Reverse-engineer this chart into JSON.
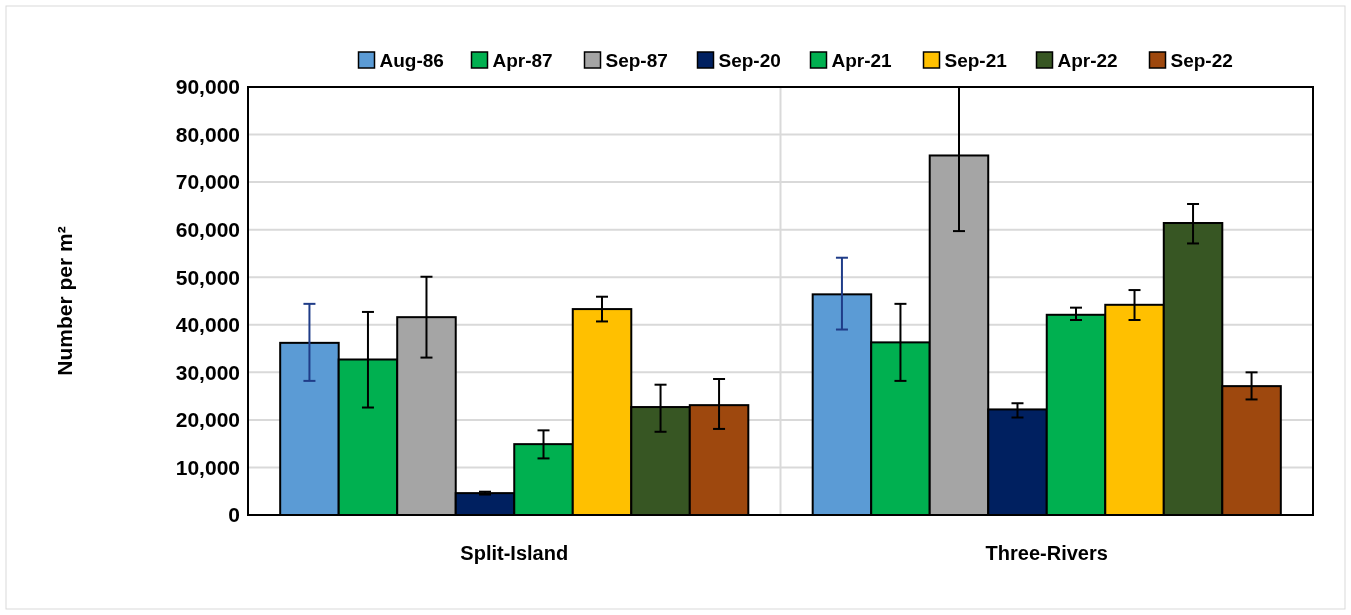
{
  "chart_data": {
    "type": "bar",
    "ylabel": "Number per m²",
    "categories": [
      "Split-Island",
      "Three-Rivers"
    ],
    "series": [
      {
        "name": "Aug-86",
        "color": "#5b9bd5",
        "values": [
          36200,
          46400
        ],
        "errors": [
          [
            28200,
            44400
          ],
          [
            39000,
            54100
          ]
        ]
      },
      {
        "name": "Apr-87",
        "color": "#00b050",
        "values": [
          32700,
          36300
        ],
        "errors": [
          [
            22600,
            42700
          ],
          [
            28200,
            44400
          ]
        ]
      },
      {
        "name": "Sep-87",
        "color": "#a5a5a5",
        "values": [
          41600,
          75600
        ],
        "errors": [
          [
            33100,
            50100
          ],
          [
            59700,
            90000
          ]
        ]
      },
      {
        "name": "Sep-20",
        "color": "#002060",
        "values": [
          4600,
          22200
        ],
        "errors": [
          [
            4300,
            4900
          ],
          [
            20500,
            23500
          ]
        ]
      },
      {
        "name": "Apr-21",
        "color": "#00b050",
        "values": [
          14900,
          42100
        ],
        "errors": [
          [
            11900,
            17800
          ],
          [
            41000,
            43600
          ]
        ]
      },
      {
        "name": "Sep-21",
        "color": "#ffc000",
        "values": [
          43300,
          44200
        ],
        "errors": [
          [
            40700,
            45900
          ],
          [
            41000,
            47300
          ]
        ]
      },
      {
        "name": "Apr-22",
        "color": "#375623",
        "values": [
          22700,
          61400
        ],
        "errors": [
          [
            17500,
            27400
          ],
          [
            57100,
            65400
          ]
        ]
      },
      {
        "name": "Sep-22",
        "color": "#9e480e",
        "values": [
          23100,
          27100
        ],
        "errors": [
          [
            18100,
            28600
          ],
          [
            24300,
            30000
          ]
        ]
      }
    ],
    "ylim": [
      0,
      90000
    ],
    "yticks": [
      {
        "value": 0,
        "label": "0"
      },
      {
        "value": 10000,
        "label": "10,000"
      },
      {
        "value": 20000,
        "label": "20,000"
      },
      {
        "value": 30000,
        "label": "30,000"
      },
      {
        "value": 40000,
        "label": "40,000"
      },
      {
        "value": 50000,
        "label": "50,000"
      },
      {
        "value": 60000,
        "label": "60,000"
      },
      {
        "value": 70000,
        "label": "70,000"
      },
      {
        "value": 80000,
        "label": "80,000"
      },
      {
        "value": 90000,
        "label": "90,000"
      }
    ],
    "grid": true,
    "legend": "top"
  }
}
